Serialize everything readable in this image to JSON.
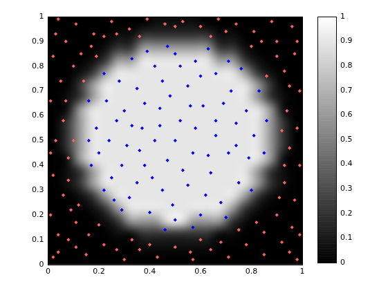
{
  "chart_data": {
    "type": "scatter",
    "xlim": [
      0,
      1
    ],
    "xticks": [
      0,
      0.2,
      0.4,
      0.6,
      0.8,
      1
    ],
    "ylim": [
      0,
      1
    ],
    "yticks": [
      0,
      0.1,
      0.2,
      0.3,
      0.4,
      0.5,
      0.6,
      0.7,
      0.8,
      0.9,
      1
    ],
    "grid": false,
    "series": [
      {
        "color": "#0000ff",
        "marker": "diamond",
        "x": [
          0.3,
          0.35,
          0.42,
          0.5,
          0.58,
          0.66,
          0.72,
          0.78,
          0.81,
          0.79,
          0.75,
          0.68,
          0.6,
          0.5,
          0.4,
          0.32,
          0.25,
          0.2,
          0.19,
          0.23,
          0.28,
          0.37,
          0.44,
          0.52,
          0.61,
          0.66,
          0.57,
          0.47,
          0.38,
          0.31,
          0.27,
          0.35,
          0.45,
          0.55,
          0.64,
          0.71,
          0.74,
          0.69,
          0.55,
          0.45,
          0.38,
          0.33,
          0.42,
          0.5,
          0.58,
          0.63,
          0.53,
          0.41,
          0.29,
          0.24,
          0.16,
          0.17,
          0.22,
          0.29,
          0.46,
          0.57,
          0.7,
          0.8,
          0.85,
          0.86,
          0.83,
          0.76,
          0.63,
          0.47,
          0.33,
          0.22,
          0.16,
          0.48,
          0.6,
          0.39,
          0.71,
          0.26,
          0.66,
          0.36,
          0.49,
          0.62,
          0.52,
          0.44,
          0.56,
          0.74
        ],
        "y": [
          0.62,
          0.71,
          0.8,
          0.85,
          0.82,
          0.77,
          0.7,
          0.62,
          0.52,
          0.43,
          0.33,
          0.25,
          0.2,
          0.18,
          0.21,
          0.27,
          0.35,
          0.45,
          0.55,
          0.66,
          0.74,
          0.55,
          0.63,
          0.58,
          0.64,
          0.52,
          0.45,
          0.42,
          0.4,
          0.48,
          0.58,
          0.33,
          0.3,
          0.32,
          0.37,
          0.45,
          0.57,
          0.65,
          0.72,
          0.74,
          0.65,
          0.56,
          0.5,
          0.5,
          0.55,
          0.44,
          0.38,
          0.35,
          0.4,
          0.5,
          0.5,
          0.4,
          0.3,
          0.22,
          0.14,
          0.15,
          0.19,
          0.3,
          0.45,
          0.58,
          0.7,
          0.79,
          0.87,
          0.88,
          0.83,
          0.77,
          0.66,
          0.68,
          0.76,
          0.86,
          0.82,
          0.26,
          0.58,
          0.46,
          0.24,
          0.28,
          0.8,
          0.56,
          0.64,
          0.48
        ]
      },
      {
        "color": "#ff6060",
        "marker": "diamond",
        "x": [
          0.02,
          0.08,
          0.15,
          0.22,
          0.3,
          0.36,
          0.43,
          0.5,
          0.57,
          0.64,
          0.71,
          0.78,
          0.85,
          0.92,
          0.98,
          0.96,
          0.9,
          0.97,
          0.93,
          0.99,
          0.95,
          0.98,
          0.94,
          0.99,
          0.93,
          0.97,
          0.9,
          0.96,
          0.88,
          0.81,
          0.74,
          0.67,
          0.6,
          0.53,
          0.46,
          0.39,
          0.32,
          0.25,
          0.18,
          0.11,
          0.04,
          0.07,
          0.02,
          0.1,
          0.05,
          0.01,
          0.06,
          0.03,
          0.08,
          0.02,
          0.06,
          0.01,
          0.11,
          0.04,
          0.16,
          0.12,
          0.17,
          0.13,
          0.85,
          0.9,
          0.84,
          0.11,
          0.27,
          0.68,
          0.82,
          0.91,
          0.95,
          0.27,
          0.7,
          0.03,
          0.98,
          0.07,
          0.04,
          0.95,
          0.4,
          0.6,
          0.1,
          0.92,
          0.5,
          0.14,
          0.86,
          0.2,
          0.8,
          0.22,
          0.08,
          0.93,
          0.33,
          0.75,
          0.56,
          0.09,
          0.99,
          0.01,
          0.36,
          0.64,
          0.19
        ],
        "y": [
          0.03,
          0.1,
          0.04,
          0.08,
          0.02,
          0.06,
          0.03,
          0.07,
          0.02,
          0.06,
          0.03,
          0.08,
          0.04,
          0.09,
          0.02,
          0.15,
          0.2,
          0.26,
          0.33,
          0.4,
          0.47,
          0.55,
          0.62,
          0.7,
          0.78,
          0.85,
          0.9,
          0.96,
          0.98,
          0.94,
          0.97,
          0.99,
          0.96,
          0.98,
          0.97,
          0.99,
          0.95,
          0.98,
          0.93,
          0.97,
          0.99,
          0.9,
          0.84,
          0.8,
          0.74,
          0.66,
          0.58,
          0.5,
          0.43,
          0.36,
          0.28,
          0.2,
          0.17,
          0.12,
          0.12,
          0.24,
          0.88,
          0.85,
          0.13,
          0.84,
          0.9,
          0.07,
          0.06,
          0.09,
          0.17,
          0.27,
          0.72,
          0.93,
          0.94,
          0.93,
          0.9,
          0.66,
          0.05,
          0.05,
          0.08,
          0.1,
          0.5,
          0.54,
          0.96,
          0.74,
          0.76,
          0.16,
          0.88,
          0.92,
          0.34,
          0.4,
          0.1,
          0.14,
          0.05,
          0.22,
          0.12,
          0.45,
          0.92,
          0.92,
          0.84
        ]
      }
    ],
    "heatmap": {
      "xrange": [
        0,
        1
      ],
      "yrange": [
        0,
        1
      ],
      "cells": [
        [
          0,
          0,
          0,
          0,
          0,
          0,
          0,
          0,
          0,
          0,
          0,
          0,
          0,
          0,
          0,
          0,
          0,
          0,
          0,
          0
        ],
        [
          0,
          0,
          0,
          0,
          0,
          0,
          0,
          0.05,
          0.05,
          0.05,
          0.05,
          0.05,
          0.05,
          0,
          0,
          0,
          0,
          0,
          0,
          0
        ],
        [
          0,
          0,
          0,
          0,
          0,
          0.05,
          0.05,
          0.2,
          0.2,
          0.2,
          0.2,
          0.2,
          0.2,
          0.05,
          0.05,
          0,
          0,
          0,
          0,
          0
        ],
        [
          0,
          0,
          0,
          0,
          0.05,
          0.2,
          0.6,
          0.6,
          0.6,
          0.9,
          0.9,
          0.6,
          0.6,
          0.6,
          0.2,
          0.05,
          0,
          0,
          0,
          0
        ],
        [
          0,
          0,
          0,
          0.05,
          0.2,
          0.6,
          0.9,
          0.9,
          0.9,
          0.9,
          0.9,
          0.9,
          0.9,
          0.9,
          0.6,
          0.2,
          0.05,
          0,
          0,
          0
        ],
        [
          0,
          0,
          0.05,
          0.2,
          0.6,
          0.9,
          0.9,
          0.9,
          0.9,
          0.9,
          0.9,
          0.9,
          0.9,
          0.9,
          0.9,
          0.6,
          0.2,
          0.05,
          0,
          0
        ],
        [
          0,
          0.05,
          0.2,
          0.6,
          0.9,
          0.9,
          0.9,
          0.9,
          0.9,
          0.9,
          0.9,
          0.9,
          0.9,
          0.9,
          0.9,
          0.9,
          0.6,
          0.2,
          0.05,
          0
        ],
        [
          0,
          0.05,
          0.2,
          0.6,
          0.9,
          0.9,
          0.9,
          0.9,
          0.9,
          0.9,
          0.9,
          0.9,
          0.9,
          0.9,
          0.9,
          0.9,
          0.6,
          0.2,
          0.05,
          0
        ],
        [
          0,
          0.05,
          0.6,
          0.9,
          0.9,
          0.9,
          0.9,
          0.9,
          0.9,
          0.9,
          0.9,
          0.9,
          0.9,
          0.9,
          0.9,
          0.9,
          0.9,
          0.6,
          0.05,
          0
        ],
        [
          0,
          0.2,
          0.6,
          0.9,
          0.9,
          0.9,
          0.9,
          0.9,
          0.9,
          0.9,
          0.9,
          0.9,
          0.9,
          0.9,
          0.9,
          0.9,
          0.9,
          0.6,
          0.2,
          0
        ],
        [
          0,
          0.2,
          0.6,
          0.9,
          0.9,
          0.9,
          0.9,
          0.9,
          0.9,
          0.9,
          0.9,
          0.9,
          0.9,
          0.9,
          0.9,
          0.9,
          0.9,
          0.6,
          0.2,
          0
        ],
        [
          0,
          0.2,
          0.6,
          0.9,
          0.9,
          0.9,
          0.9,
          0.9,
          0.9,
          0.9,
          0.9,
          0.9,
          0.9,
          0.9,
          0.9,
          0.9,
          0.9,
          0.6,
          0.2,
          0
        ],
        [
          0,
          0.05,
          0.6,
          0.9,
          0.9,
          0.9,
          0.9,
          0.9,
          0.9,
          0.9,
          0.9,
          0.9,
          0.9,
          0.9,
          0.9,
          0.9,
          0.9,
          0.6,
          0.05,
          0
        ],
        [
          0,
          0.05,
          0.2,
          0.6,
          0.9,
          0.9,
          0.9,
          0.9,
          0.9,
          0.9,
          0.9,
          0.9,
          0.9,
          0.9,
          0.9,
          0.9,
          0.6,
          0.2,
          0.05,
          0
        ],
        [
          0,
          0,
          0.2,
          0.6,
          0.9,
          0.9,
          0.9,
          0.9,
          0.9,
          0.9,
          0.9,
          0.9,
          0.9,
          0.9,
          0.9,
          0.9,
          0.6,
          0.2,
          0,
          0
        ],
        [
          0,
          0,
          0.05,
          0.2,
          0.6,
          0.9,
          0.9,
          0.9,
          0.9,
          0.9,
          0.9,
          0.9,
          0.9,
          0.9,
          0.9,
          0.6,
          0.2,
          0.05,
          0,
          0
        ],
        [
          0,
          0,
          0,
          0.05,
          0.2,
          0.6,
          0.6,
          0.9,
          0.9,
          0.9,
          0.9,
          0.9,
          0.9,
          0.6,
          0.6,
          0.2,
          0.05,
          0,
          0,
          0
        ],
        [
          0,
          0,
          0,
          0,
          0.05,
          0.2,
          0.2,
          0.6,
          0.6,
          0.6,
          0.6,
          0.6,
          0.6,
          0.2,
          0.2,
          0.05,
          0,
          0,
          0,
          0
        ],
        [
          0,
          0,
          0,
          0,
          0,
          0.05,
          0.05,
          0.2,
          0.2,
          0.2,
          0.2,
          0.2,
          0.2,
          0.05,
          0.05,
          0,
          0,
          0,
          0,
          0
        ],
        [
          0,
          0,
          0,
          0,
          0,
          0,
          0,
          0,
          0.05,
          0.05,
          0.05,
          0.05,
          0,
          0,
          0,
          0,
          0,
          0,
          0,
          0
        ]
      ]
    },
    "colorbar": {
      "range": [
        0,
        1
      ],
      "ticks": [
        0,
        0.1,
        0.2,
        0.3,
        0.4,
        0.5,
        0.6,
        0.7,
        0.8,
        0.9,
        1
      ]
    }
  }
}
